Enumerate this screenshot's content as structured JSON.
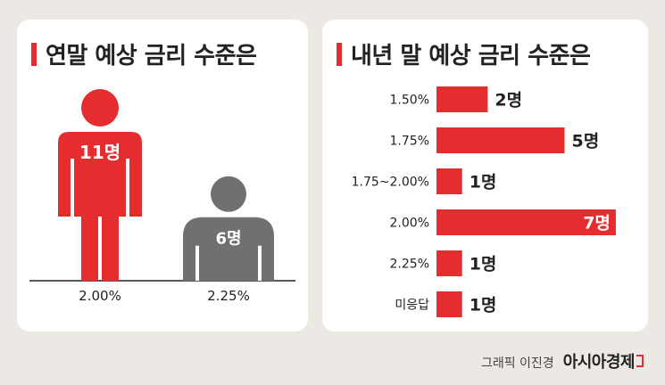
{
  "left_panel": {
    "title": "연말 예상 금리 수준은"
  },
  "right_panel": {
    "title": "내년 말 예상 금리 수준은"
  },
  "footer": {
    "credit": "그래픽 이진경",
    "brand": "아시아경제"
  },
  "colors": {
    "accent": "#e52d2f",
    "neutral": "#707070"
  },
  "chart_data": [
    {
      "type": "bar",
      "style": "pictogram",
      "categories": [
        "2.00%",
        "2.25%"
      ],
      "values": [
        11,
        6
      ],
      "value_labels": [
        "11명",
        "6명"
      ],
      "colors": [
        "#e52d2f",
        "#707070"
      ]
    },
    {
      "type": "bar",
      "orientation": "horizontal",
      "categories": [
        "1.50%",
        "1.75%",
        "1.75~2.00%",
        "2.00%",
        "2.25%",
        "미응답"
      ],
      "values": [
        2,
        5,
        1,
        7,
        1,
        1
      ],
      "value_labels": [
        "2명",
        "5명",
        "1명",
        "7명",
        "1명",
        "1명"
      ]
    }
  ]
}
